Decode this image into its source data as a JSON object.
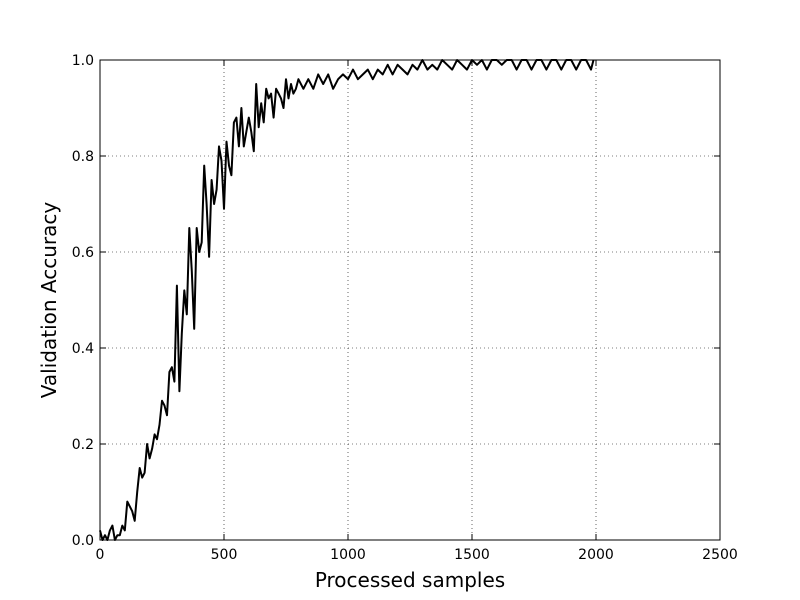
{
  "chart_data": {
    "type": "line",
    "title": "",
    "xlabel": "Processed samples",
    "ylabel": "Validation Accuracy",
    "xlim": [
      0,
      2500
    ],
    "ylim": [
      0,
      1.0
    ],
    "x_ticks": [
      0,
      500,
      1000,
      1500,
      2000,
      2500
    ],
    "x_tick_labels": [
      "0",
      "500",
      "1000",
      "1500",
      "2000",
      "2500"
    ],
    "y_ticks": [
      0.0,
      0.2,
      0.4,
      0.6,
      0.8,
      1.0
    ],
    "y_tick_labels": [
      "0.0",
      "0.2",
      "0.4",
      "0.6",
      "0.8",
      "1.0"
    ],
    "grid": true,
    "line_color": "#000000",
    "series": [
      {
        "x": [
          0,
          10,
          20,
          30,
          40,
          50,
          60,
          70,
          80,
          90,
          100,
          110,
          120,
          130,
          140,
          150,
          160,
          170,
          180,
          190,
          200,
          210,
          220,
          230,
          240,
          250,
          260,
          270,
          280,
          290,
          300,
          310,
          320,
          330,
          340,
          350,
          360,
          370,
          380,
          390,
          400,
          410,
          420,
          430,
          440,
          450,
          460,
          470,
          480,
          490,
          500,
          510,
          520,
          530,
          540,
          550,
          560,
          570,
          580,
          590,
          600,
          610,
          620,
          630,
          640,
          650,
          660,
          670,
          680,
          690,
          700,
          710,
          720,
          730,
          740,
          750,
          760,
          770,
          780,
          790,
          800,
          820,
          840,
          860,
          880,
          900,
          920,
          940,
          960,
          980,
          1000,
          1020,
          1040,
          1060,
          1080,
          1100,
          1120,
          1140,
          1160,
          1180,
          1200,
          1220,
          1240,
          1260,
          1280,
          1300,
          1320,
          1340,
          1360,
          1380,
          1400,
          1420,
          1440,
          1460,
          1480,
          1500,
          1520,
          1540,
          1560,
          1580,
          1600,
          1620,
          1640,
          1660,
          1680,
          1700,
          1720,
          1740,
          1760,
          1780,
          1800,
          1820,
          1840,
          1860,
          1880,
          1900,
          1920,
          1940,
          1960,
          1980,
          1990
        ],
        "values": [
          0.02,
          0.0,
          0.01,
          0.0,
          0.02,
          0.03,
          0.0,
          0.01,
          0.01,
          0.03,
          0.02,
          0.08,
          0.07,
          0.06,
          0.04,
          0.1,
          0.15,
          0.13,
          0.14,
          0.2,
          0.17,
          0.19,
          0.22,
          0.21,
          0.24,
          0.29,
          0.28,
          0.26,
          0.35,
          0.36,
          0.33,
          0.53,
          0.31,
          0.43,
          0.52,
          0.47,
          0.65,
          0.56,
          0.44,
          0.65,
          0.6,
          0.62,
          0.78,
          0.7,
          0.59,
          0.75,
          0.7,
          0.73,
          0.82,
          0.79,
          0.69,
          0.83,
          0.78,
          0.76,
          0.87,
          0.88,
          0.82,
          0.9,
          0.82,
          0.85,
          0.88,
          0.85,
          0.81,
          0.95,
          0.86,
          0.91,
          0.87,
          0.94,
          0.92,
          0.93,
          0.88,
          0.94,
          0.93,
          0.92,
          0.9,
          0.96,
          0.92,
          0.95,
          0.93,
          0.94,
          0.96,
          0.94,
          0.96,
          0.94,
          0.97,
          0.95,
          0.97,
          0.94,
          0.96,
          0.97,
          0.96,
          0.98,
          0.96,
          0.97,
          0.98,
          0.96,
          0.98,
          0.97,
          0.99,
          0.97,
          0.99,
          0.98,
          0.97,
          0.99,
          0.98,
          1.0,
          0.98,
          0.99,
          0.98,
          1.0,
          0.99,
          0.98,
          1.0,
          0.99,
          0.98,
          1.0,
          0.99,
          1.0,
          0.98,
          1.0,
          1.0,
          0.99,
          1.0,
          1.0,
          0.98,
          1.0,
          1.0,
          0.98,
          1.0,
          1.0,
          0.98,
          1.0,
          1.0,
          0.98,
          1.0,
          1.0,
          0.98,
          1.0,
          1.0,
          0.98,
          1.0
        ]
      }
    ]
  }
}
